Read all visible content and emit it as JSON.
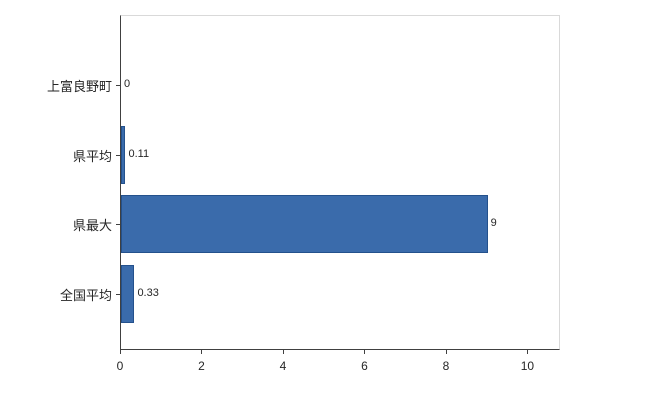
{
  "chart_data": {
    "type": "bar",
    "orientation": "horizontal",
    "title": "",
    "categories": [
      "上富良野町",
      "県平均",
      "県最大",
      "全国平均"
    ],
    "values": [
      0,
      0.11,
      9,
      0.33
    ],
    "value_labels": [
      "0",
      "0.11",
      "9",
      "0.33"
    ],
    "xlim": [
      0,
      10.8
    ],
    "x_ticks": [
      0,
      2,
      4,
      6,
      8,
      10
    ],
    "x_tick_labels": [
      "0",
      "2",
      "4",
      "6",
      "8",
      "10"
    ],
    "grid": false,
    "legend": false,
    "bar_color": "#3a6bab",
    "bar_border_color": "#24518c",
    "axis_color": "#404040",
    "plot_border_color": "#d9d9d9",
    "text_color": "#262626"
  }
}
